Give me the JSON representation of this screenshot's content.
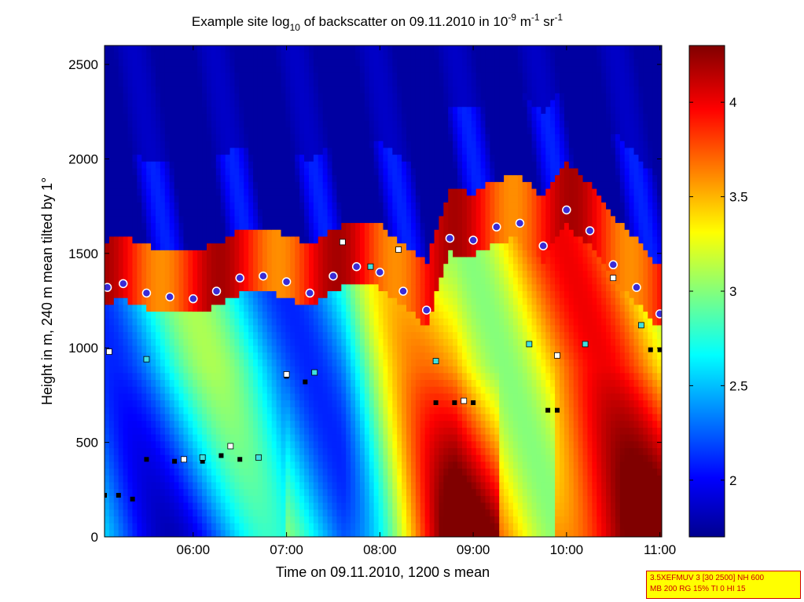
{
  "chart_data": {
    "type": "heatmap",
    "title_parts": {
      "prefix": "Example site log",
      "sub": "10",
      "mid": " of backscatter on 09.11.2010 in 10",
      "sup1": "-9",
      "mid2": " m",
      "sup2": "-1",
      "mid3": " sr",
      "sup3": "-1"
    },
    "xlabel": "Time on 09.11.2010, 1200 s mean",
    "ylabel": "Height in m, 240 m mean tilted by 1°",
    "x_unit": "hours (decimal)",
    "xlim": [
      5.05,
      11.02
    ],
    "ylim": [
      0,
      2600
    ],
    "x_ticks": [
      {
        "value": 6,
        "label": "06:00"
      },
      {
        "value": 7,
        "label": "07:00"
      },
      {
        "value": 8,
        "label": "08:00"
      },
      {
        "value": 9,
        "label": "09:00"
      },
      {
        "value": 10,
        "label": "10:00"
      },
      {
        "value": 11,
        "label": "11:00"
      }
    ],
    "y_ticks": [
      {
        "value": 0,
        "label": "0"
      },
      {
        "value": 500,
        "label": "500"
      },
      {
        "value": 1000,
        "label": "1000"
      },
      {
        "value": 1500,
        "label": "1500"
      },
      {
        "value": 2000,
        "label": "2000"
      },
      {
        "value": 2500,
        "label": "2500"
      }
    ],
    "colorbar": {
      "range": [
        1.7,
        4.3
      ],
      "ticks": [
        {
          "value": 2,
          "label": "2"
        },
        {
          "value": 2.5,
          "label": "2.5"
        },
        {
          "value": 3,
          "label": "3"
        },
        {
          "value": 3.5,
          "label": "3.5"
        },
        {
          "value": 4,
          "label": "4"
        }
      ],
      "colormap": "jet"
    },
    "colors": {
      "jet": [
        "#00008f",
        "#0000ff",
        "#00ffff",
        "#ffff00",
        "#ff0000",
        "#800000"
      ]
    },
    "mixing_layer_height": {
      "description": "purple dots with white edge",
      "x": [
        5.08,
        5.25,
        5.5,
        5.75,
        6.0,
        6.25,
        6.5,
        6.75,
        7.0,
        7.25,
        7.5,
        7.75,
        8.0,
        8.25,
        8.5,
        8.75,
        9.0,
        9.25,
        9.5,
        9.75,
        10.0,
        10.25,
        10.5,
        10.75,
        11.0
      ],
      "y": [
        1320,
        1340,
        1290,
        1270,
        1260,
        1300,
        1370,
        1380,
        1350,
        1290,
        1380,
        1430,
        1400,
        1300,
        1200,
        1580,
        1570,
        1640,
        1660,
        1540,
        1730,
        1620,
        1440,
        1320,
        1180
      ]
    },
    "aerosol_layers": {
      "description": "white/cyan squares",
      "x": [
        5.1,
        5.5,
        5.9,
        6.1,
        6.4,
        6.7,
        7.0,
        7.3,
        7.6,
        7.9,
        8.2,
        8.6,
        8.9,
        9.6,
        9.9,
        10.2,
        10.5,
        10.8
      ],
      "y": [
        980,
        940,
        410,
        420,
        480,
        420,
        860,
        870,
        1560,
        1430,
        1520,
        930,
        720,
        1020,
        960,
        1020,
        1370,
        1120
      ]
    },
    "surface_layer": {
      "description": "black markers",
      "x": [
        5.05,
        5.2,
        5.35,
        5.5,
        5.8,
        6.1,
        6.3,
        6.5,
        7.0,
        7.2,
        8.6,
        8.8,
        9.0,
        9.8,
        9.9,
        10.9,
        11.0
      ],
      "y": [
        220,
        220,
        200,
        410,
        400,
        400,
        430,
        410,
        850,
        820,
        710,
        710,
        710,
        670,
        670,
        990,
        990
      ]
    }
  },
  "info_box": {
    "line1": "3.5XEFMUV 3 [30 2500] NH 600",
    "line2": "MB 200 RG 15% TI 0 HI 15"
  }
}
